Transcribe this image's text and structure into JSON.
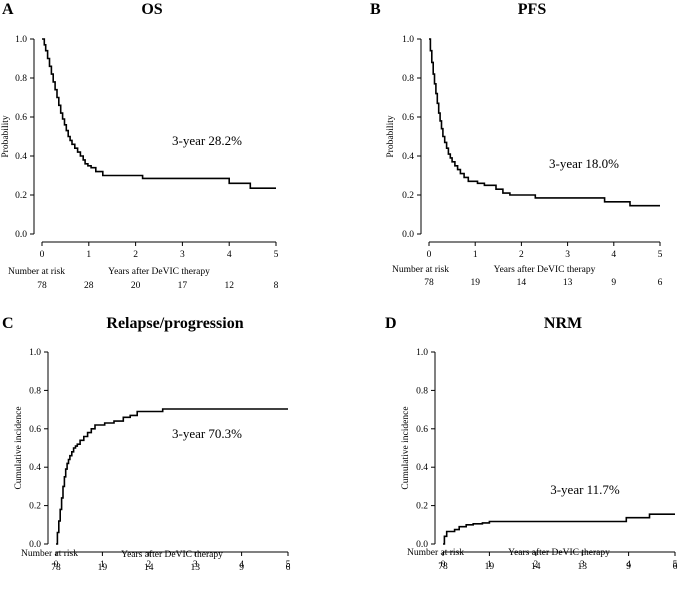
{
  "chart_data": [
    {
      "type": "line",
      "panel_letter": "A",
      "title": "OS",
      "ylabel": "Probability",
      "xlabel": "Years after DeVIC therapy",
      "xlim": [
        0,
        5
      ],
      "ylim": [
        0,
        1.0
      ],
      "x_ticks": [
        "0",
        "1",
        "2",
        "3",
        "4",
        "5"
      ],
      "y_ticks": [
        "0.0",
        "0.2",
        "0.4",
        "0.6",
        "0.8",
        "1.0"
      ],
      "annotation": "3-year 28.2%",
      "risk_label": "Number at risk",
      "at_risk": [
        "78",
        "28",
        "20",
        "17",
        "12",
        "8"
      ],
      "series": [
        {
          "x": [
            0,
            0.05,
            0.08,
            0.12,
            0.16,
            0.2,
            0.24,
            0.28,
            0.32,
            0.36,
            0.4,
            0.44,
            0.48,
            0.52,
            0.56,
            0.6,
            0.64,
            0.7,
            0.76,
            0.82,
            0.88,
            0.92,
            0.98,
            1.05,
            1.15,
            1.3,
            2.15,
            4.0,
            4.45,
            5.0
          ],
          "y": [
            1.0,
            0.97,
            0.94,
            0.9,
            0.86,
            0.82,
            0.78,
            0.74,
            0.7,
            0.66,
            0.62,
            0.59,
            0.56,
            0.53,
            0.5,
            0.48,
            0.46,
            0.44,
            0.42,
            0.4,
            0.38,
            0.36,
            0.35,
            0.34,
            0.32,
            0.3,
            0.285,
            0.26,
            0.235,
            0.235
          ]
        }
      ]
    },
    {
      "type": "line",
      "panel_letter": "B",
      "title": "PFS",
      "ylabel": "Probability",
      "xlabel": "Years after DeVIC therapy",
      "xlim": [
        0,
        5
      ],
      "ylim": [
        0,
        1.0
      ],
      "x_ticks": [
        "0",
        "1",
        "2",
        "3",
        "4",
        "5"
      ],
      "y_ticks": [
        "0.0",
        "0.2",
        "0.4",
        "0.6",
        "0.8",
        "1.0"
      ],
      "annotation": "3-year 18.0%",
      "risk_label": "Number at risk",
      "at_risk": [
        "78",
        "19",
        "14",
        "13",
        "9",
        "6"
      ],
      "series": [
        {
          "x": [
            0,
            0.03,
            0.06,
            0.09,
            0.12,
            0.15,
            0.18,
            0.21,
            0.24,
            0.27,
            0.3,
            0.34,
            0.38,
            0.42,
            0.46,
            0.5,
            0.56,
            0.62,
            0.68,
            0.76,
            0.85,
            1.05,
            1.2,
            1.45,
            1.6,
            1.75,
            2.3,
            3.8,
            4.35,
            5.0
          ],
          "y": [
            1.0,
            0.94,
            0.88,
            0.82,
            0.77,
            0.72,
            0.67,
            0.62,
            0.58,
            0.54,
            0.5,
            0.47,
            0.44,
            0.41,
            0.39,
            0.37,
            0.35,
            0.33,
            0.31,
            0.29,
            0.27,
            0.26,
            0.25,
            0.23,
            0.21,
            0.2,
            0.185,
            0.165,
            0.145,
            0.145
          ]
        }
      ]
    },
    {
      "type": "line",
      "panel_letter": "C",
      "title": "Relapse/progression",
      "ylabel": "Cumulative incidence",
      "xlabel": "Years after DeVIC therapy",
      "xlim": [
        0,
        5
      ],
      "ylim": [
        0,
        1.0
      ],
      "x_ticks": [
        "0",
        "1",
        "2",
        "3",
        "4",
        "5"
      ],
      "y_ticks": [
        "0.0",
        "0.2",
        "0.4",
        "0.6",
        "0.8",
        "1.0"
      ],
      "annotation": "3-year 70.3%",
      "risk_label": "Number at risk",
      "at_risk": [
        "78",
        "19",
        "14",
        "13",
        "9",
        "6"
      ],
      "series": [
        {
          "x": [
            0,
            0.03,
            0.06,
            0.09,
            0.12,
            0.15,
            0.18,
            0.21,
            0.24,
            0.27,
            0.3,
            0.34,
            0.38,
            0.42,
            0.46,
            0.52,
            0.6,
            0.68,
            0.76,
            0.84,
            0.92,
            1.05,
            1.25,
            1.45,
            1.6,
            1.75,
            2.3,
            5.0
          ],
          "y": [
            0.0,
            0.06,
            0.12,
            0.18,
            0.24,
            0.3,
            0.35,
            0.39,
            0.42,
            0.44,
            0.46,
            0.48,
            0.5,
            0.51,
            0.52,
            0.54,
            0.56,
            0.58,
            0.6,
            0.62,
            0.62,
            0.63,
            0.64,
            0.66,
            0.67,
            0.69,
            0.703,
            0.703
          ]
        }
      ]
    },
    {
      "type": "line",
      "panel_letter": "D",
      "title": "NRM",
      "ylabel": "Cumulative incidence",
      "xlabel": "Years after DeVIC therapy",
      "xlim": [
        0,
        5
      ],
      "ylim": [
        0,
        1.0
      ],
      "x_ticks": [
        "0",
        "1",
        "2",
        "3",
        "4",
        "5"
      ],
      "y_ticks": [
        "0.0",
        "0.2",
        "0.4",
        "0.6",
        "0.8",
        "1.0"
      ],
      "annotation": "3-year 11.7%",
      "risk_label": "Number at risk",
      "at_risk": [
        "78",
        "19",
        "14",
        "13",
        "9",
        "6"
      ],
      "series": [
        {
          "x": [
            0,
            0.03,
            0.08,
            0.25,
            0.35,
            0.5,
            0.65,
            0.85,
            1.0,
            3.95,
            4.45,
            5.0
          ],
          "y": [
            0.0,
            0.04,
            0.065,
            0.075,
            0.09,
            0.1,
            0.105,
            0.11,
            0.117,
            0.137,
            0.155,
            0.155
          ]
        }
      ]
    }
  ]
}
